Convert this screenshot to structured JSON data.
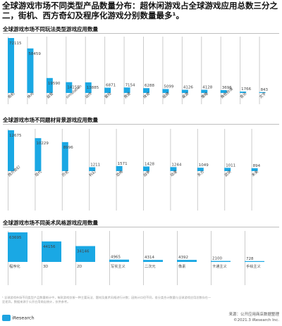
{
  "page": {
    "title": "全球游戏市场不同类型产品数量分布：超休闲游戏占全球游戏应用总数三分之二，街机、西方奇幻及程序化游戏分别数量最多¹。"
  },
  "colors": {
    "bar": "#1aa8e4",
    "line": "#cccccc",
    "label": "#444444"
  },
  "chart_data": [
    {
      "type": "bar",
      "title": "全球游戏市场不同玩法类型游戏应用数量",
      "categories": [
        "街机",
        "休闲",
        "益智",
        "simulation",
        "动作",
        "冒险",
        "竞速",
        "体育",
        "纸牌",
        "桌游",
        "策略",
        "角色扮演",
        "音乐",
        "文字"
      ],
      "values": [
        72115,
        58459,
        19590,
        14155,
        13885,
        6871,
        7154,
        6288,
        5099,
        4126,
        4128,
        3696,
        1766,
        843
      ],
      "value_labels": [
        "72115",
        "58459",
        "19590",
        "14155",
        "13885",
        "6871",
        "7154",
        "6288",
        "5099",
        "4126",
        "4128",
        "3696",
        "1766",
        "843"
      ]
    },
    {
      "type": "bar",
      "title": "全球游戏市场不同题材背景游戏应用数量",
      "categories": [
        "西方奇幻",
        "现代",
        "历史",
        "科幻",
        "恐怖",
        "战争",
        "动漫",
        "东方",
        "武侠",
        "未来"
      ],
      "values": [
        12675,
        10229,
        8996,
        1211,
        1571,
        1428,
        1244,
        1049,
        1011,
        894
      ],
      "value_labels": [
        "12675",
        "10229",
        "8996",
        "1211",
        "1571",
        "1428",
        "1244",
        "1049",
        "1011",
        "894"
      ]
    },
    {
      "type": "bar",
      "title": "全球游戏市场不同美术风格游戏应用数量",
      "categories": [
        "程序化",
        "3D",
        "2D",
        "写实主义",
        "二次元",
        "像素",
        "卡通主义",
        "手绘主义"
      ],
      "values": [
        63695,
        44156,
        34146,
        4965,
        4314,
        4392,
        2100,
        728
      ],
      "value_labels": [
        "63695",
        "44156",
        "34146",
        "4965",
        "4314",
        "4392",
        "2100",
        "728"
      ]
    }
  ],
  "footer": {
    "footnote": "¹ 全球游戏市场不同类型产品数量统计中，每款游戏仅按一种主要玩法、题材及美术风格进行计数；因统计口径不同，各分类合计数量与全球游戏应用总数存在一定差异。数据来源于公开应用商店统计，仅供参考。",
    "logo": "iResearch",
    "source_line1": "来源：公开应用商店数据整理",
    "source_line2": "©2021.3 iResearch Inc."
  }
}
